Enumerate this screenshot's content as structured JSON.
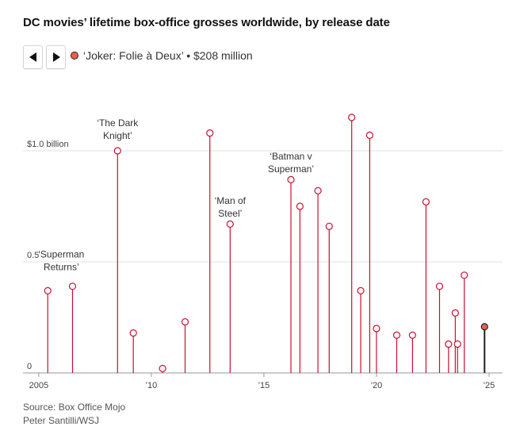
{
  "title": "DC movies’ lifetime box-office grosses worldwide, by release date",
  "navigation": {
    "prev_icon": "triangle-left",
    "next_icon": "triangle-right"
  },
  "selected": {
    "label": "‘Joker: Folie à Deux’ • $208 million",
    "dot_color": "#e8624f"
  },
  "colors": {
    "stem": "#c9102f",
    "highlight_fill": "#e8624f",
    "highlight_stem": "#222222",
    "grid": "#e2e2e2"
  },
  "footer": {
    "source": "Source: Box Office Mojo",
    "credit": "Peter Santilli/WSJ"
  },
  "chart_data": {
    "type": "scatter",
    "style": "lollipop",
    "xlim": [
      2004.3,
      2025.6
    ],
    "ylim": [
      0,
      1.2
    ],
    "grid": true,
    "y_ticks": [
      {
        "value": 0,
        "label": "0"
      },
      {
        "value": 0.5,
        "label": "0.5"
      },
      {
        "value": 1.0,
        "label": "$1.0 billion"
      }
    ],
    "x_ticks": [
      {
        "value": 2005,
        "label": "2005"
      },
      {
        "value": 2010,
        "label": "’10"
      },
      {
        "value": 2015,
        "label": "’15"
      },
      {
        "value": 2020,
        "label": "’20"
      },
      {
        "value": 2025,
        "label": "’25"
      }
    ],
    "x": [
      2005.4,
      2006.5,
      2008.5,
      2009.2,
      2010.5,
      2011.5,
      2012.6,
      2013.5,
      2016.2,
      2016.6,
      2017.4,
      2017.9,
      2018.9,
      2019.3,
      2019.7,
      2020.0,
      2020.9,
      2021.6,
      2022.2,
      2022.8,
      2023.2,
      2023.5,
      2023.6,
      2023.9,
      2024.8
    ],
    "y": [
      0.37,
      0.39,
      1.0,
      0.18,
      0.02,
      0.23,
      1.08,
      0.67,
      0.87,
      0.75,
      0.82,
      0.66,
      1.15,
      0.37,
      1.07,
      0.2,
      0.17,
      0.17,
      0.77,
      0.39,
      0.13,
      0.27,
      0.13,
      0.44,
      0.208
    ],
    "highlight_index": 24,
    "annotations": [
      {
        "lines": [
          "‘Superman",
          "Returns’"
        ],
        "x": 2006.0,
        "y": 0.52
      },
      {
        "lines": [
          "‘The Dark",
          "Knight’"
        ],
        "x": 2008.5,
        "y": 1.11
      },
      {
        "lines": [
          "‘Man of",
          "Steel’"
        ],
        "x": 2013.5,
        "y": 0.76
      },
      {
        "lines": [
          "‘Batman v",
          "Superman’"
        ],
        "x": 2016.2,
        "y": 0.96
      }
    ]
  }
}
